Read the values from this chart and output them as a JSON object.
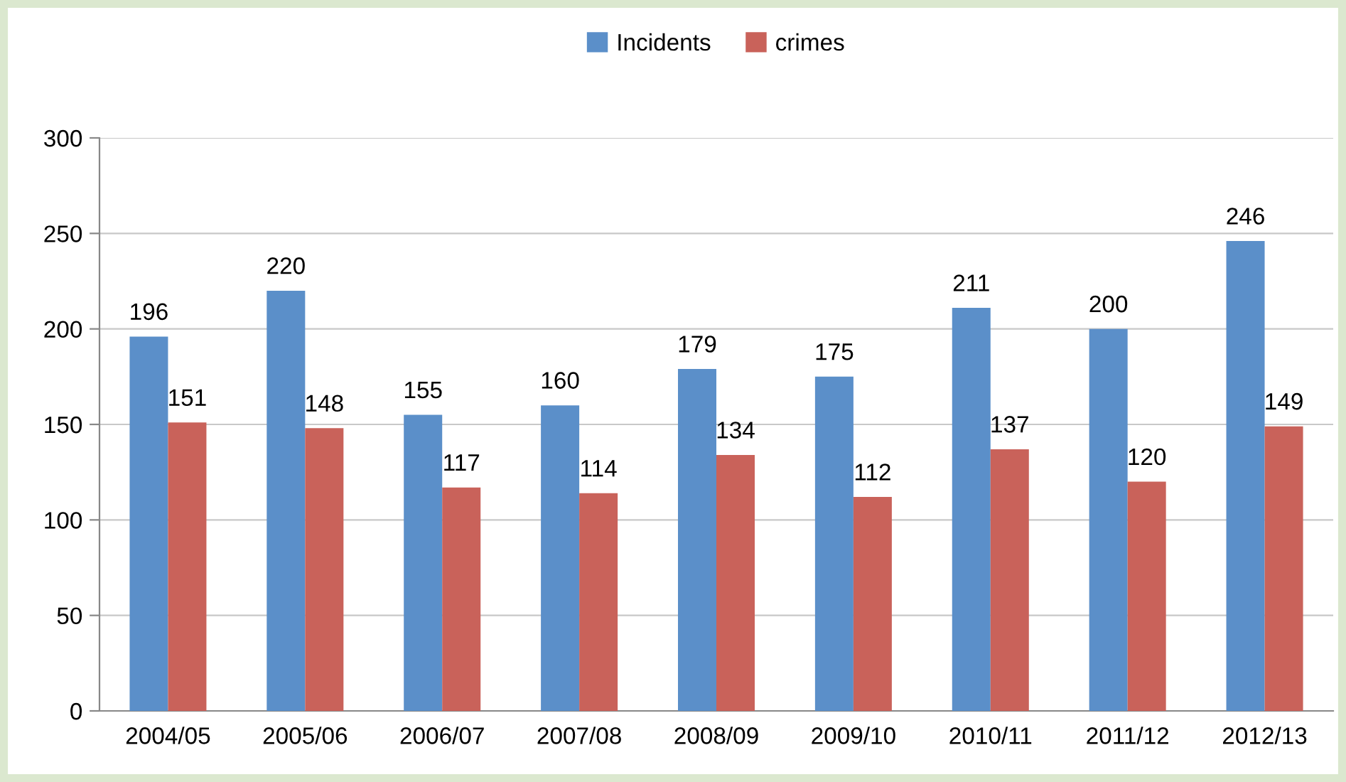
{
  "chart_data": {
    "type": "bar",
    "categories": [
      "2004/05",
      "2005/06",
      "2006/07",
      "2007/08",
      "2008/09",
      "2009/10",
      "2010/11",
      "2011/12",
      "2012/13"
    ],
    "series": [
      {
        "name": "Incidents",
        "color": "#5b8fc9",
        "values": [
          196,
          220,
          155,
          160,
          179,
          175,
          211,
          200,
          246
        ]
      },
      {
        "name": "crimes",
        "color": "#c9625a",
        "values": [
          151,
          148,
          117,
          114,
          134,
          112,
          137,
          120,
          149
        ]
      }
    ],
    "ylim": [
      0,
      300
    ],
    "yticks": [
      0,
      50,
      100,
      150,
      200,
      250,
      300
    ],
    "grid": "y",
    "legend": "top",
    "data_labels": true
  }
}
